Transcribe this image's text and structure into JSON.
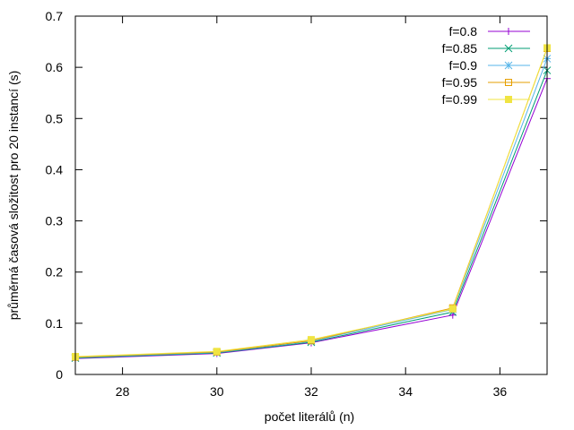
{
  "chart_data": {
    "type": "line",
    "title": "",
    "xlabel": "počet literálů (n)",
    "ylabel": "průměrná časová složitost pro 20 instancí (s)",
    "xlim": [
      27,
      37
    ],
    "ylim": [
      0,
      0.7
    ],
    "xticks": [
      28,
      30,
      32,
      34,
      36
    ],
    "yticks": [
      0,
      0.1,
      0.2,
      0.3,
      0.4,
      0.5,
      0.6,
      0.7
    ],
    "ytick_labels": [
      "0",
      "0.1",
      "0.2",
      "0.3",
      "0.4",
      "0.5",
      "0.6",
      "0.7"
    ],
    "grid": false,
    "legend_position": "top-right",
    "x": [
      27,
      30,
      32,
      35,
      37
    ],
    "series": [
      {
        "name": "f=0.8",
        "color": "#9400d3",
        "marker": "plus",
        "values": [
          0.031,
          0.041,
          0.062,
          0.116,
          0.578
        ]
      },
      {
        "name": "f=0.85",
        "color": "#009e73",
        "marker": "cross",
        "values": [
          0.032,
          0.042,
          0.063,
          0.122,
          0.594
        ]
      },
      {
        "name": "f=0.9",
        "color": "#56b4e9",
        "marker": "asterisk",
        "values": [
          0.033,
          0.043,
          0.065,
          0.127,
          0.617
        ]
      },
      {
        "name": "f=0.95",
        "color": "#e69f00",
        "marker": "square-open",
        "values": [
          0.034,
          0.044,
          0.066,
          0.13,
          0.637
        ]
      },
      {
        "name": "f=0.99",
        "color": "#f0e442",
        "marker": "square-filled",
        "values": [
          0.035,
          0.045,
          0.068,
          0.128,
          0.638
        ]
      }
    ]
  }
}
